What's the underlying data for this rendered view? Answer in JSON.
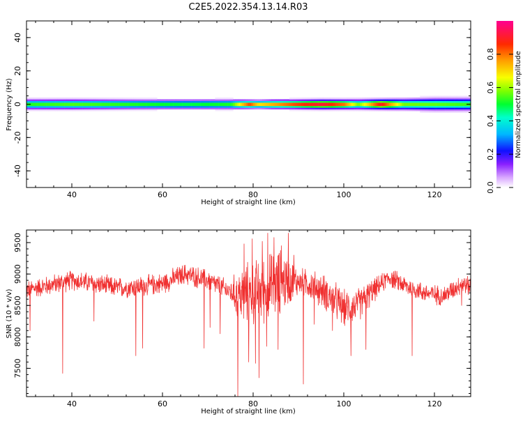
{
  "title": "C2E5.2022.354.13.14.R03",
  "chart_data": [
    {
      "type": "heatmap",
      "xlabel": "Height of straight line (km)",
      "ylabel": "Frequency (Hz)",
      "xlim": [
        30,
        128
      ],
      "ylim": [
        -50,
        50
      ],
      "xticks": [
        40,
        60,
        80,
        100,
        120
      ],
      "yticks": [
        -40,
        -20,
        0,
        20,
        40
      ],
      "colorbar": {
        "label": "Normalized spectral amplitude",
        "ticks": [
          0.0,
          0.2,
          0.4,
          0.6,
          0.8
        ],
        "range": [
          0,
          1
        ]
      },
      "band_profile": [
        {
          "x": 30,
          "amp": 0.55,
          "width": 3.2
        },
        {
          "x": 40,
          "amp": 0.58,
          "width": 3.2
        },
        {
          "x": 55,
          "amp": 0.55,
          "width": 3.0
        },
        {
          "x": 65,
          "amp": 0.52,
          "width": 3.0
        },
        {
          "x": 75,
          "amp": 0.55,
          "width": 3.0
        },
        {
          "x": 79,
          "amp": 0.92,
          "width": 2.6
        },
        {
          "x": 81,
          "amp": 0.75,
          "width": 2.6
        },
        {
          "x": 84,
          "amp": 0.8,
          "width": 2.8
        },
        {
          "x": 89,
          "amp": 0.9,
          "width": 2.8
        },
        {
          "x": 95,
          "amp": 0.97,
          "width": 3.0
        },
        {
          "x": 100,
          "amp": 0.85,
          "width": 3.0
        },
        {
          "x": 103,
          "amp": 0.6,
          "width": 3.2
        },
        {
          "x": 108,
          "amp": 0.95,
          "width": 3.2
        },
        {
          "x": 113,
          "amp": 0.6,
          "width": 3.6
        },
        {
          "x": 120,
          "amp": 0.58,
          "width": 4.0
        },
        {
          "x": 128,
          "amp": 0.55,
          "width": 4.0
        }
      ]
    },
    {
      "type": "line",
      "xlabel": "Height of straight line (km)",
      "ylabel": "SNR (10 * v/v)",
      "xlim": [
        30,
        128
      ],
      "ylim": [
        7050,
        9700
      ],
      "xticks": [
        40,
        60,
        80,
        100,
        120
      ],
      "yticks": [
        7500,
        8000,
        8500,
        9000,
        9500
      ],
      "color": "#f03030",
      "baseline": [
        {
          "x": 30,
          "y": 8750
        },
        {
          "x": 35,
          "y": 8820
        },
        {
          "x": 40,
          "y": 8900
        },
        {
          "x": 45,
          "y": 8850
        },
        {
          "x": 50,
          "y": 8780
        },
        {
          "x": 55,
          "y": 8800
        },
        {
          "x": 60,
          "y": 8850
        },
        {
          "x": 65,
          "y": 9000
        },
        {
          "x": 70,
          "y": 8900
        },
        {
          "x": 74,
          "y": 8750
        },
        {
          "x": 77,
          "y": 8650
        },
        {
          "x": 80,
          "y": 8700
        },
        {
          "x": 84,
          "y": 8800
        },
        {
          "x": 88,
          "y": 8900
        },
        {
          "x": 92,
          "y": 8850
        },
        {
          "x": 96,
          "y": 8700
        },
        {
          "x": 100,
          "y": 8450
        },
        {
          "x": 103,
          "y": 8500
        },
        {
          "x": 106,
          "y": 8700
        },
        {
          "x": 110,
          "y": 8950
        },
        {
          "x": 114,
          "y": 8800
        },
        {
          "x": 118,
          "y": 8700
        },
        {
          "x": 122,
          "y": 8650
        },
        {
          "x": 126,
          "y": 8850
        },
        {
          "x": 128,
          "y": 8800
        }
      ],
      "noise": [
        {
          "x": 30,
          "amp": 180
        },
        {
          "x": 75,
          "amp": 200
        },
        {
          "x": 77,
          "amp": 550
        },
        {
          "x": 86,
          "amp": 650
        },
        {
          "x": 90,
          "amp": 250
        },
        {
          "x": 98,
          "amp": 350
        },
        {
          "x": 104,
          "amp": 300
        },
        {
          "x": 108,
          "amp": 180
        },
        {
          "x": 128,
          "amp": 180
        }
      ],
      "dips": [
        {
          "x": 30.8,
          "y": 8100
        },
        {
          "x": 38.0,
          "y": 7420
        },
        {
          "x": 44.9,
          "y": 8250
        },
        {
          "x": 54.1,
          "y": 7700
        },
        {
          "x": 55.6,
          "y": 7820
        },
        {
          "x": 69.2,
          "y": 7820
        },
        {
          "x": 70.5,
          "y": 8150
        },
        {
          "x": 72.7,
          "y": 8050
        },
        {
          "x": 76.6,
          "y": 7060
        },
        {
          "x": 79.0,
          "y": 7600
        },
        {
          "x": 80.5,
          "y": 7580
        },
        {
          "x": 81.3,
          "y": 7350
        },
        {
          "x": 83.0,
          "y": 7850
        },
        {
          "x": 85.5,
          "y": 7800
        },
        {
          "x": 91.1,
          "y": 7250
        },
        {
          "x": 93.5,
          "y": 8200
        },
        {
          "x": 97.5,
          "y": 8100
        },
        {
          "x": 101.6,
          "y": 7700
        },
        {
          "x": 104.9,
          "y": 7800
        },
        {
          "x": 115.1,
          "y": 7700
        },
        {
          "x": 126.0,
          "y": 8500
        }
      ],
      "spikes": [
        {
          "x": 78.0,
          "y": 9480
        },
        {
          "x": 79.8,
          "y": 9560
        },
        {
          "x": 82.0,
          "y": 9520
        },
        {
          "x": 83.2,
          "y": 9650
        },
        {
          "x": 84.6,
          "y": 9580
        },
        {
          "x": 86.2,
          "y": 9450
        },
        {
          "x": 87.8,
          "y": 9650
        },
        {
          "x": 89.0,
          "y": 9300
        }
      ]
    }
  ]
}
